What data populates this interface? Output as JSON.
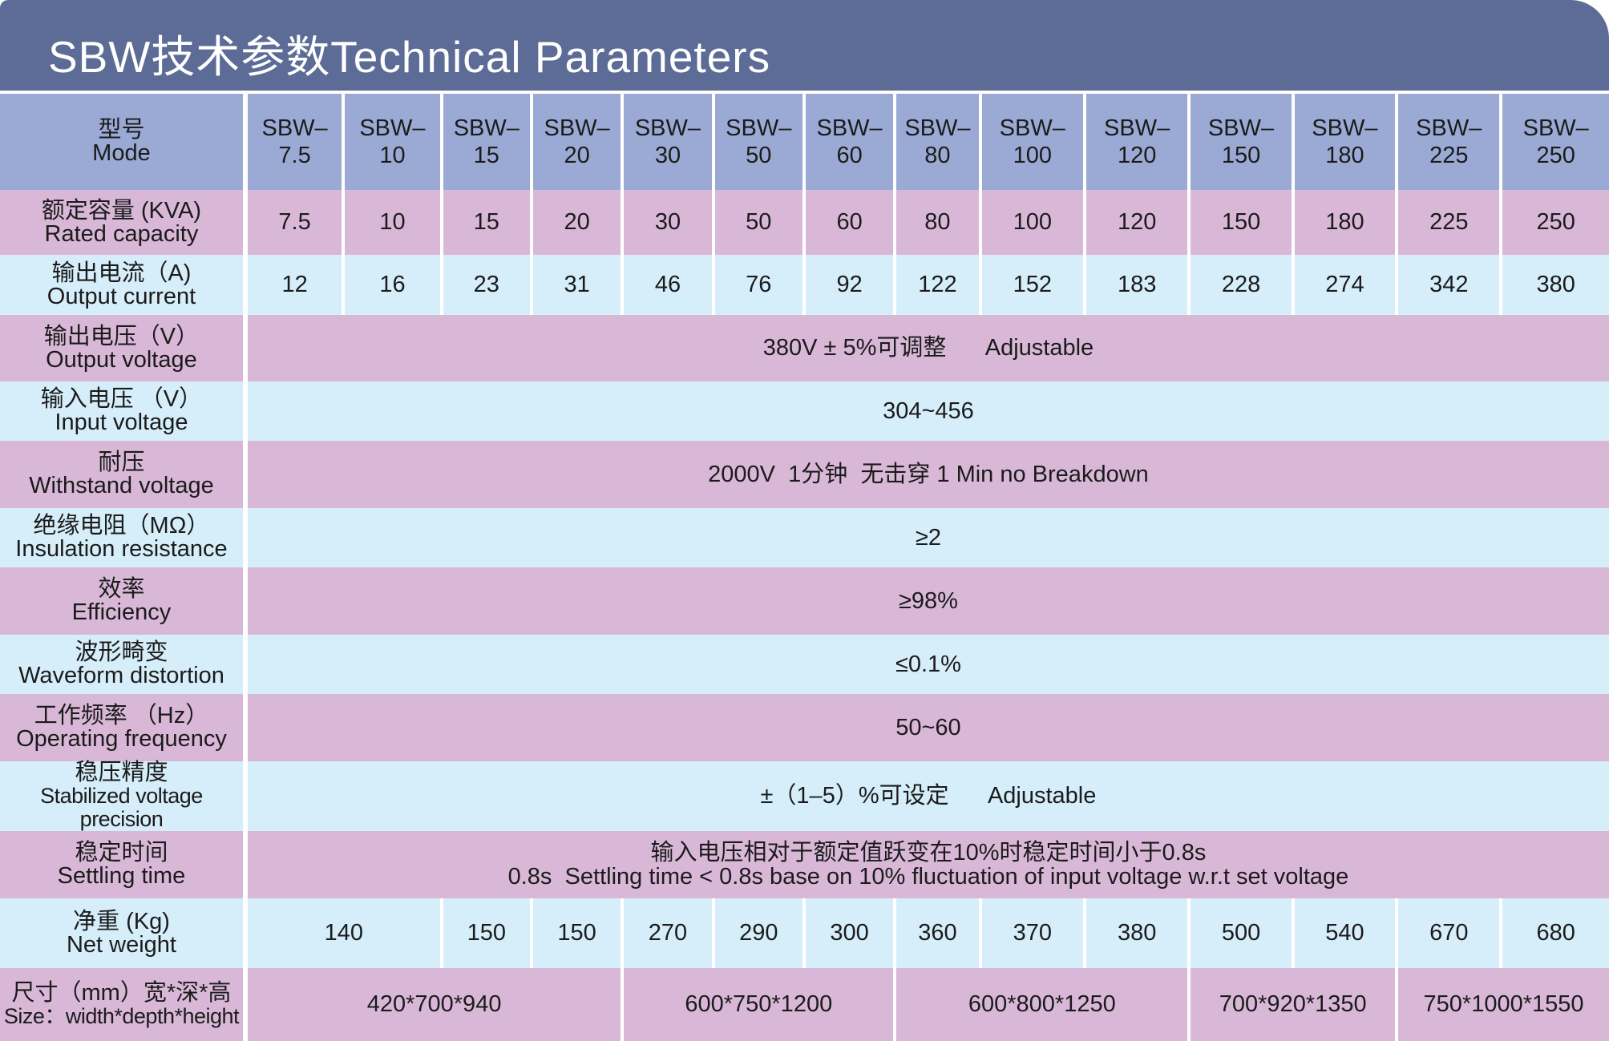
{
  "title": "SBW技术参数Technical Parameters",
  "models": [
    {
      "a": "SBW–",
      "b": "7.5"
    },
    {
      "a": "SBW–",
      "b": "10"
    },
    {
      "a": "SBW–",
      "b": "15"
    },
    {
      "a": "SBW–",
      "b": "20"
    },
    {
      "a": "SBW–",
      "b": "30"
    },
    {
      "a": "SBW–",
      "b": "50"
    },
    {
      "a": "SBW–",
      "b": "60"
    },
    {
      "a": "SBW–",
      "b": "80"
    },
    {
      "a": "SBW–",
      "b": "100"
    },
    {
      "a": "SBW–",
      "b": "120"
    },
    {
      "a": "SBW–",
      "b": "150"
    },
    {
      "a": "SBW–",
      "b": "180"
    },
    {
      "a": "SBW–",
      "b": "225"
    },
    {
      "a": "SBW–",
      "b": "250"
    }
  ],
  "labels": {
    "mode": {
      "zh": "型号",
      "en": "Mode"
    },
    "rated_capacity": {
      "zh": "额定容量 (KVA)",
      "en": "Rated capacity"
    },
    "output_current": {
      "zh": "输出电流（A)",
      "en": "Output current"
    },
    "output_voltage": {
      "zh": "输出电压（V）",
      "en": "Output voltage"
    },
    "input_voltage": {
      "zh": "输入电压 （V）",
      "en": "Input voltage"
    },
    "withstand_voltage": {
      "zh": "耐压",
      "en": "Withstand voltage"
    },
    "insulation_resistance": {
      "zh": "绝缘电阻（MΩ）",
      "en": "Insulation resistance"
    },
    "efficiency": {
      "zh": "效率",
      "en": "Efficiency"
    },
    "waveform_distortion": {
      "zh": "波形畸变",
      "en": "Waveform distortion"
    },
    "operating_frequency": {
      "zh": "工作频率 （Hz）",
      "en": "Operating frequency"
    },
    "precision": {
      "zh": "稳压精度",
      "en": "Stabilized voltage precision"
    },
    "settling_time": {
      "zh": "稳定时间",
      "en": "Settling time"
    },
    "net_weight": {
      "zh": "净重 (Kg)",
      "en": "Net weight"
    },
    "size": {
      "zh": "尺寸（mm）宽*深*高",
      "en": "Size：width*depth*height"
    }
  },
  "rated_capacity": [
    "7.5",
    "10",
    "15",
    "20",
    "30",
    "50",
    "60",
    "80",
    "100",
    "120",
    "150",
    "180",
    "225",
    "250"
  ],
  "output_current": [
    "12",
    "16",
    "23",
    "31",
    "46",
    "76",
    "92",
    "122",
    "152",
    "183",
    "228",
    "274",
    "342",
    "380"
  ],
  "output_voltage": "380V ± 5%可调整      Adjustable",
  "input_voltage": "304~456",
  "withstand_voltage": "2000V  1分钟  无击穿 1 Min no Breakdown",
  "insulation_resistance": "≥2",
  "efficiency": "≥98%",
  "waveform_distortion": "≤0.1%",
  "operating_frequency": "50~60",
  "precision": "±（1–5）%可设定      Adjustable",
  "settling_time": {
    "line1": "输入电压相对于额定值跃变在10%时稳定时间小于0.8s",
    "line2": "0.8s  Settling time < 0.8s base on 10% fluctuation of input voltage w.r.t set voltage"
  },
  "net_weight": [
    "140",
    "150",
    "150",
    "270",
    "290",
    "300",
    "360",
    "370",
    "380",
    "500",
    "540",
    "670",
    "680"
  ],
  "size": [
    "420*700*940",
    "600*750*1200",
    "600*800*1250",
    "700*920*1350",
    "750*1000*1550"
  ]
}
